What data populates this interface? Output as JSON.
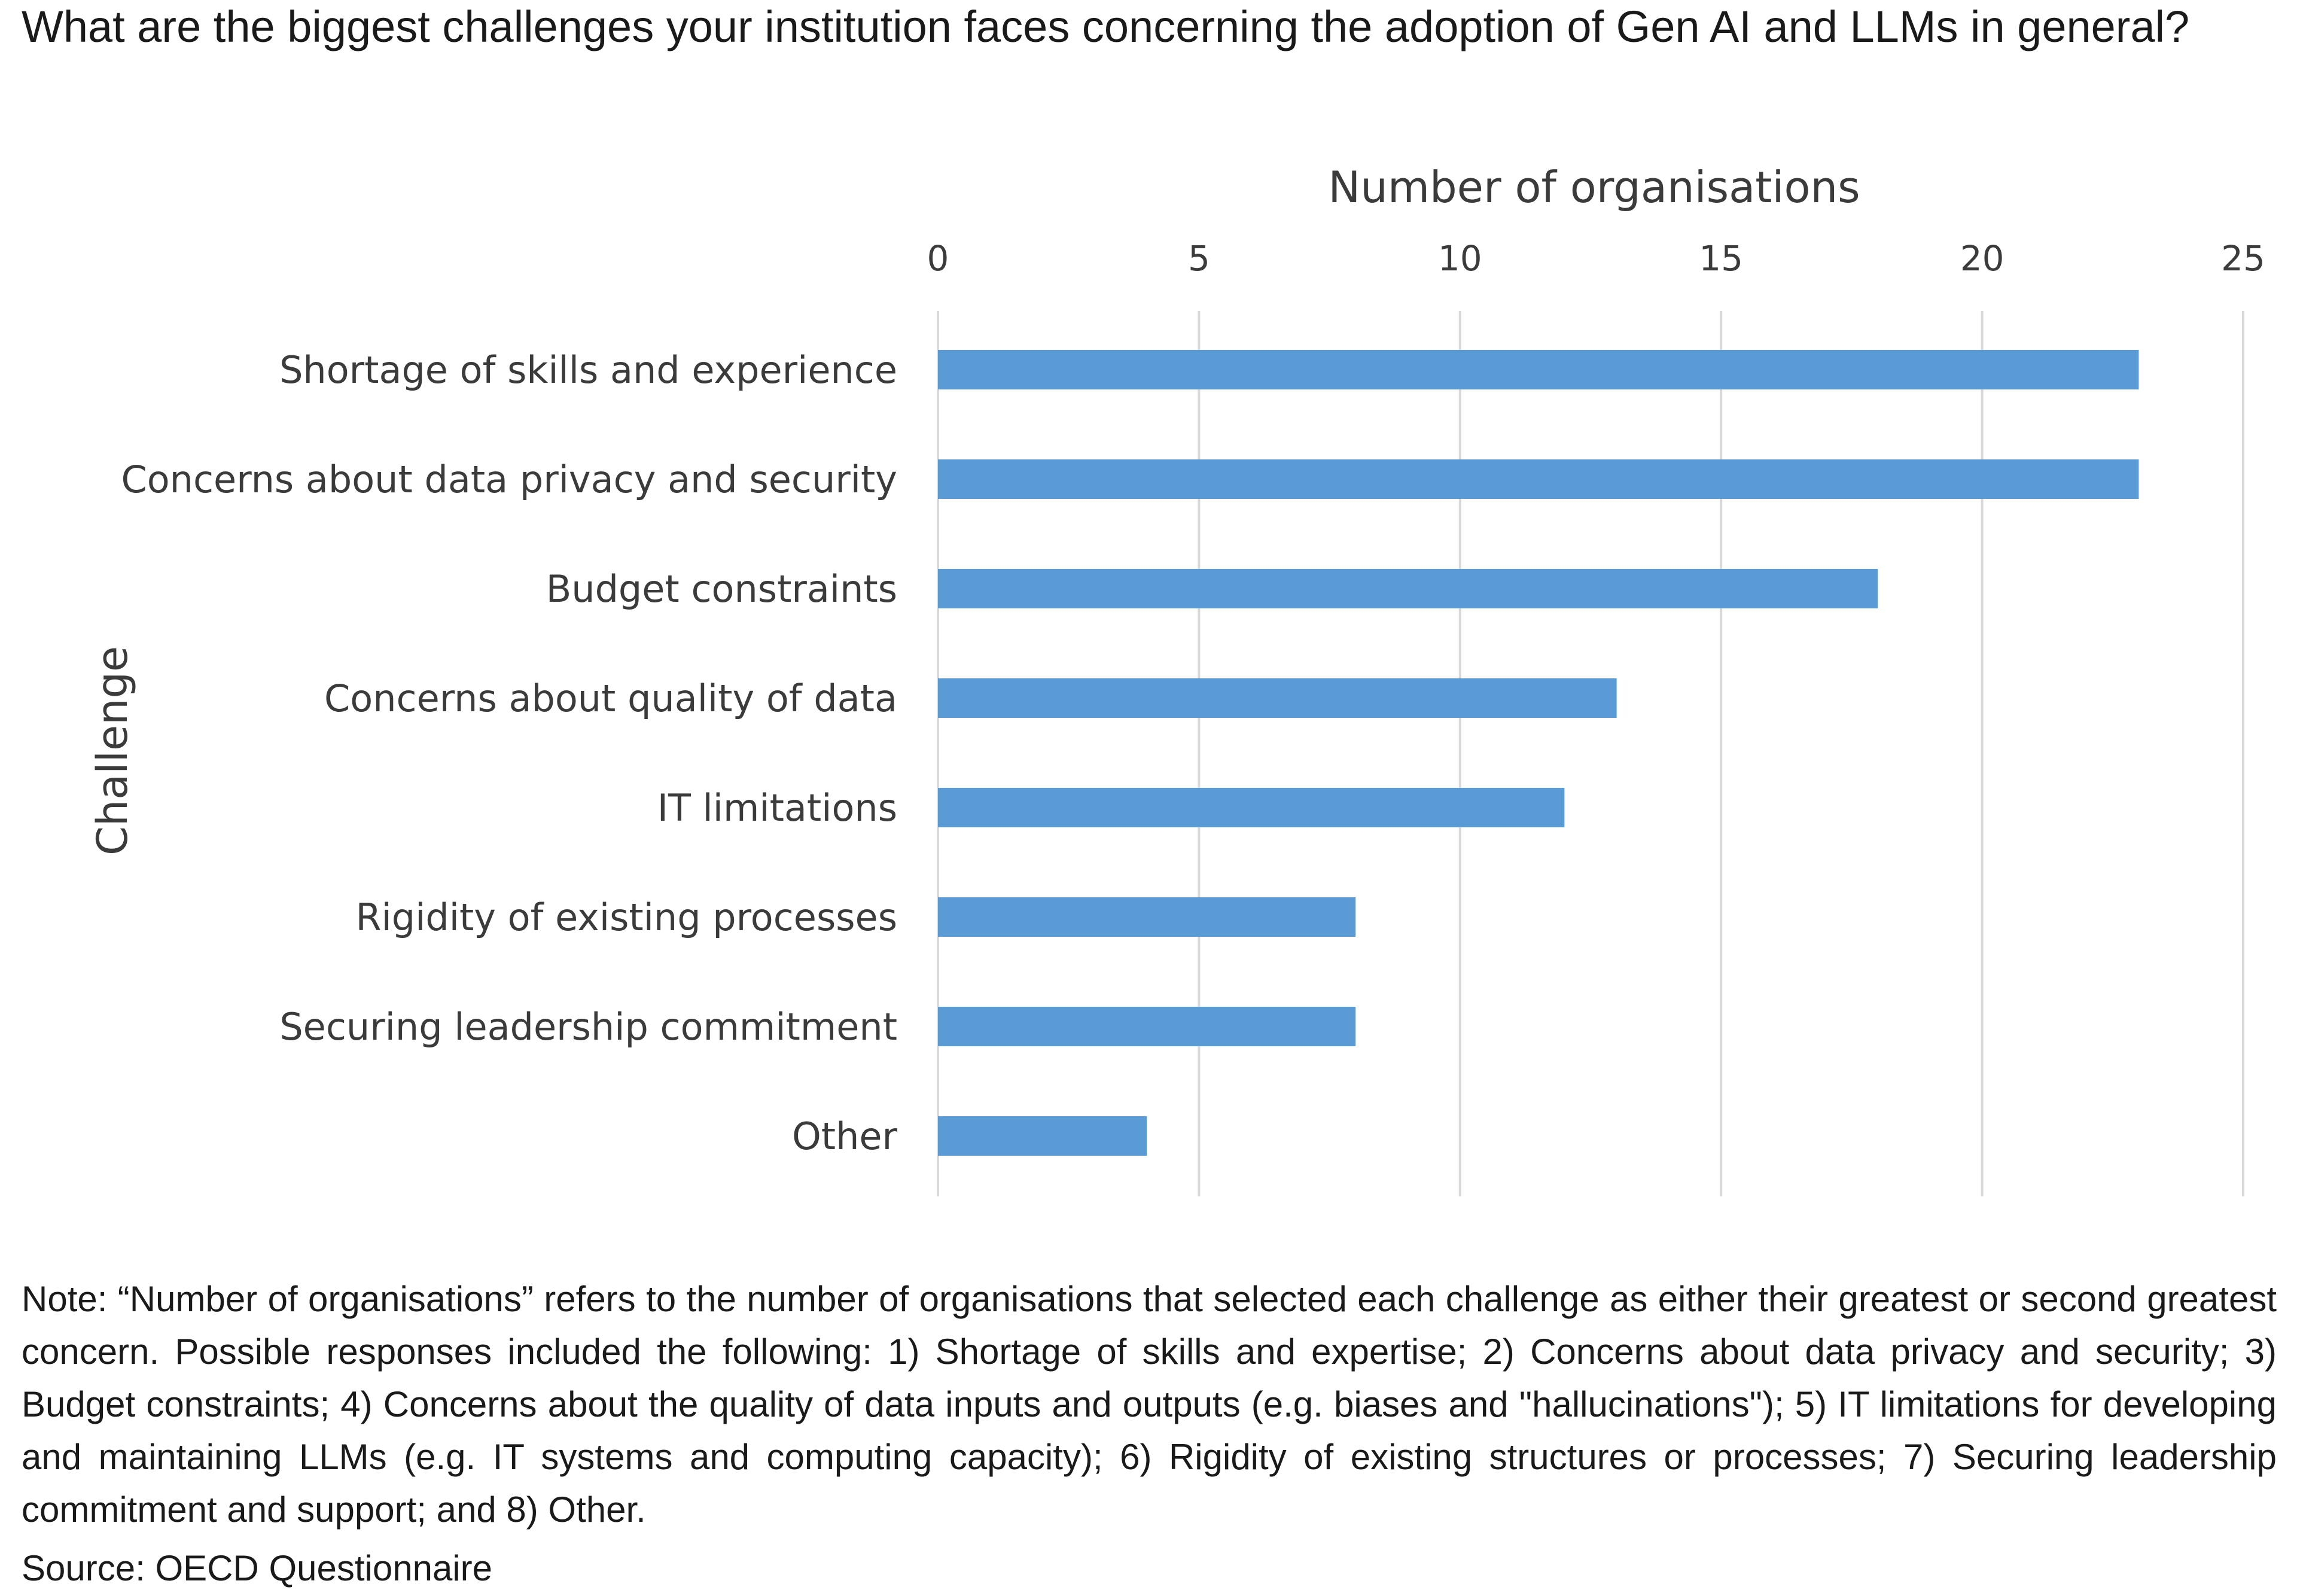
{
  "question": "What are the biggest challenges your institution faces concerning the adoption of Gen AI and LLMs in general?",
  "note": "Note: “Number of organisations” refers to the number of organisations that selected each challenge as either their greatest or second greatest concern. Possible responses included the following: 1) Shortage of skills and expertise; 2) Concerns about data privacy and security; 3) Budget constraints; 4) Concerns about the quality of data inputs and outputs (e.g. biases and \"hallucinations\"); 5) IT limitations for developing and maintaining LLMs (e.g. IT systems and computing capacity); 6) Rigidity of existing structures or processes; 7) Securing leadership commitment and support; and 8) Other.",
  "source": "Source: OECD Questionnaire",
  "colors": {
    "bar": "#5b9bd5",
    "grid": "#d9d9d9",
    "text": "#3b3b3b"
  },
  "chart_data": {
    "type": "bar",
    "orientation": "horizontal",
    "title": "",
    "xlabel": "Number of organisations",
    "ylabel": "Challenge",
    "xlim": [
      0,
      25
    ],
    "ticks": [
      0,
      5,
      10,
      15,
      20,
      25
    ],
    "x_axis_position": "top",
    "grid": true,
    "categories": [
      "Shortage of skills and experience",
      "Concerns about data privacy and security",
      "Budget constraints",
      "Concerns about quality of data",
      "IT limitations",
      "Rigidity of existing processes",
      "Securing leadership commitment",
      "Other"
    ],
    "values": [
      23,
      23,
      18,
      13,
      12,
      8,
      8,
      4
    ]
  }
}
